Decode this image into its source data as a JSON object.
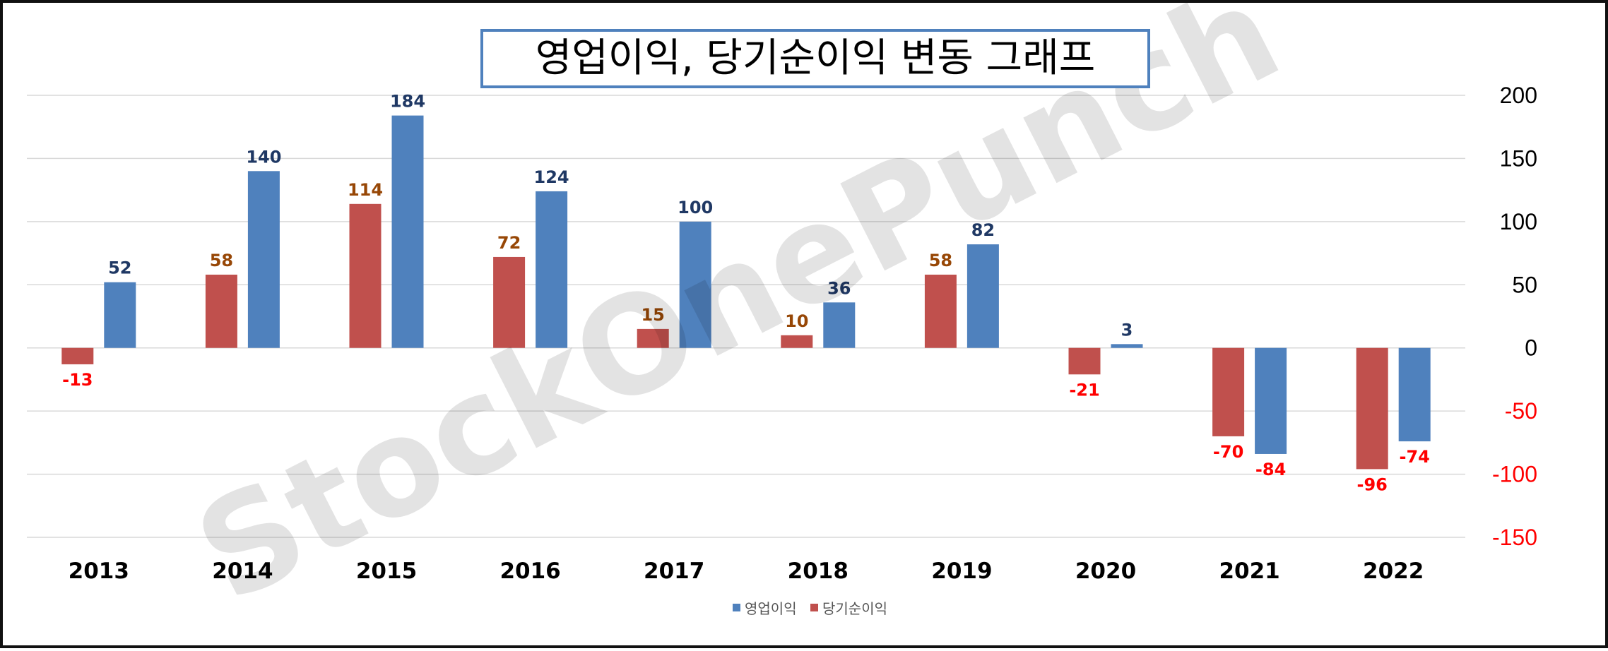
{
  "chart_data": {
    "type": "bar",
    "title": "영업이익, 당기순이익 변동 그래프",
    "categories": [
      "2013",
      "2014",
      "2015",
      "2016",
      "2017",
      "2018",
      "2019",
      "2020",
      "2021",
      "2022"
    ],
    "series": [
      {
        "name": "당기순이익",
        "values": [
          -13,
          58,
          114,
          72,
          15,
          10,
          58,
          -21,
          -70,
          -96
        ],
        "color": "#c0504d",
        "label_color": "#974706"
      },
      {
        "name": "영업이익",
        "values": [
          52,
          140,
          184,
          124,
          100,
          36,
          82,
          3,
          -84,
          -74
        ],
        "color": "#4f81bd",
        "label_color": "#1f3864"
      }
    ],
    "negative_label_color": "#ff0000",
    "ylim": [
      -150,
      200
    ],
    "yticks": [
      200,
      150,
      100,
      50,
      0,
      -50,
      -100,
      -150
    ],
    "y_axis_side": "right",
    "grid": true,
    "legend": {
      "placement": "bottom",
      "entries": [
        "영업이익",
        "당기순이익"
      ]
    },
    "title_border_color": "#4f81bd",
    "watermark": "StockOnePunch"
  }
}
